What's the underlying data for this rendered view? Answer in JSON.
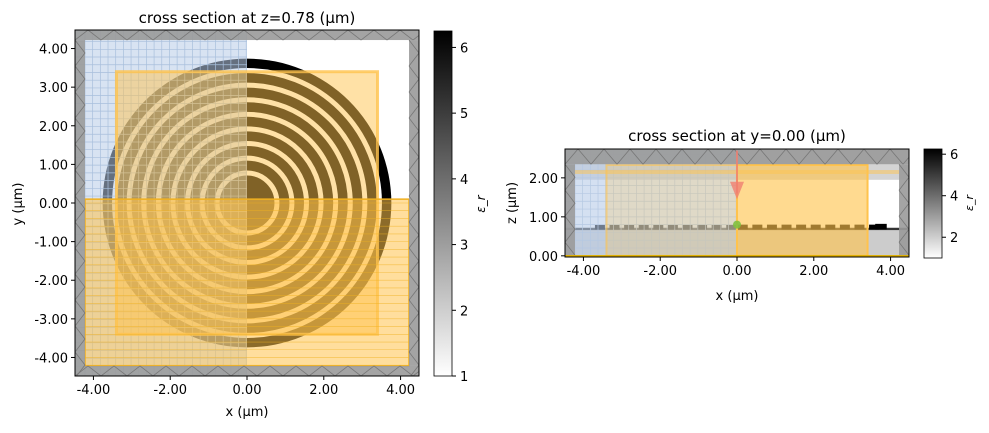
{
  "chart_data": [
    {
      "type": "heatmap",
      "title": "cross section at z=0.78 (μm)",
      "xlabel": "x (μm)",
      "ylabel": "y (μm)",
      "xlim": [
        -4.48,
        4.48
      ],
      "ylim": [
        -4.48,
        4.48
      ],
      "xticks": [
        "-4.00",
        "-2.00",
        "0.00",
        "2.00",
        "4.00"
      ],
      "yticks": [
        "4.00",
        "3.00",
        "2.00",
        "1.00",
        "0.00",
        "-1.00",
        "-2.00",
        "-3.00",
        "-4.00"
      ],
      "colorbar": {
        "label": "ε_r",
        "range": [
          1,
          6.25
        ],
        "ticks": [
          "1",
          "2",
          "3",
          "4",
          "5",
          "6"
        ]
      }
    },
    {
      "type": "heatmap",
      "title": "cross section at y=0.00 (μm)",
      "xlabel": "x (μm)",
      "ylabel": "z (μm)",
      "xlim": [
        -4.48,
        4.48
      ],
      "ylim": [
        -0.03,
        2.74
      ],
      "xticks": [
        "-4.00",
        "-2.00",
        "0.00",
        "2.00",
        "4.00"
      ],
      "yticks": [
        "2.00",
        "1.00",
        "0.00"
      ],
      "colorbar": {
        "label": "ε_r",
        "range": [
          1,
          6.25
        ],
        "ticks": [
          "2",
          "4",
          "6"
        ]
      }
    }
  ],
  "colors": {
    "pml": "#9a9a9a",
    "symmetry_region": "#b8cce8",
    "monitor": "#ffc34d",
    "boundary_line": "#f0b020",
    "source": "#f08070",
    "source_point": "#80c040",
    "high_permittivity": "#000000"
  }
}
